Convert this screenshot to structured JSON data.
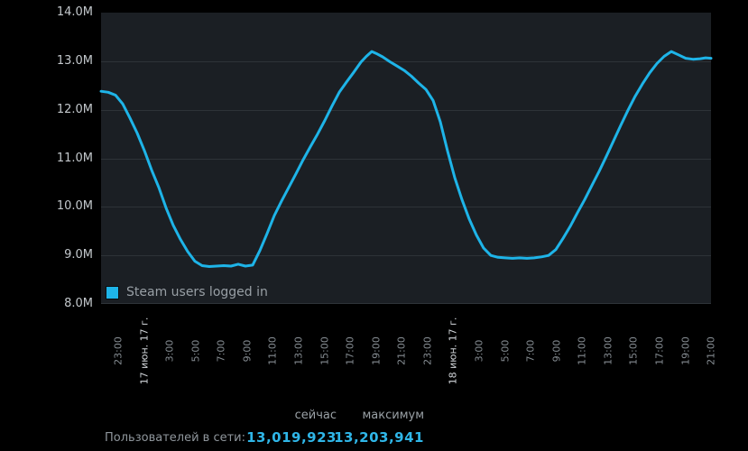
{
  "colors": {
    "background": "#000000",
    "plot_background": "#1b1f24",
    "gridline": "#2e3338",
    "accent_line": "#1eb4e8",
    "value_text": "#2fb6e8",
    "y_label": "#c3c8cc",
    "x_label": "#858c92",
    "x_label_strong": "#d2d6da"
  },
  "chart": {
    "legend": {
      "label": "Steam users logged in",
      "swatch_color": "#1eb4e8"
    },
    "y_ticks": [
      "14.0M",
      "13.0M",
      "12.0M",
      "11.0M",
      "10.0M",
      "9.0M",
      "8.0M"
    ],
    "x_ticks": [
      {
        "label": "23:00",
        "strong": false
      },
      {
        "label": "17 июн. 17 г.",
        "strong": true
      },
      {
        "label": "3:00",
        "strong": false
      },
      {
        "label": "5:00",
        "strong": false
      },
      {
        "label": "7:00",
        "strong": false
      },
      {
        "label": "9:00",
        "strong": false
      },
      {
        "label": "11:00",
        "strong": false
      },
      {
        "label": "13:00",
        "strong": false
      },
      {
        "label": "15:00",
        "strong": false
      },
      {
        "label": "17:00",
        "strong": false
      },
      {
        "label": "19:00",
        "strong": false
      },
      {
        "label": "21:00",
        "strong": false
      },
      {
        "label": "23:00",
        "strong": false
      },
      {
        "label": "18 июн. 17 г.",
        "strong": true
      },
      {
        "label": "3:00",
        "strong": false
      },
      {
        "label": "5:00",
        "strong": false
      },
      {
        "label": "7:00",
        "strong": false
      },
      {
        "label": "9:00",
        "strong": false
      },
      {
        "label": "11:00",
        "strong": false
      },
      {
        "label": "13:00",
        "strong": false
      },
      {
        "label": "15:00",
        "strong": false
      },
      {
        "label": "17:00",
        "strong": false
      },
      {
        "label": "19:00",
        "strong": false
      },
      {
        "label": "21:00",
        "strong": false
      }
    ]
  },
  "chart_data": {
    "type": "line",
    "title": "",
    "xlabel": "",
    "ylabel": "Steam users logged in (millions)",
    "ylim": [
      8,
      14
    ],
    "y_tick_labels": [
      "14.0M",
      "13.0M",
      "12.0M",
      "11.0M",
      "10.0M",
      "9.0M",
      "8.0M"
    ],
    "grid": "horizontal only",
    "legend_position": "bottom-left inside plot",
    "x_unit": "hours from left edge of chart (ticks every 2 h, first tick = 23:00 16 июн.)",
    "t_span": 47.32,
    "first_tick_hour": 1.33,
    "tick_step_hours": 2,
    "x_tick_labels": [
      "23:00",
      "17 июн. 17 г.",
      "3:00",
      "5:00",
      "7:00",
      "9:00",
      "11:00",
      "13:00",
      "15:00",
      "17:00",
      "19:00",
      "21:00",
      "23:00",
      "18 июн. 17 г.",
      "3:00",
      "5:00",
      "7:00",
      "9:00",
      "11:00",
      "13:00",
      "15:00",
      "17:00",
      "19:00",
      "21:00"
    ],
    "series": [
      {
        "name": "Steam users logged in",
        "color": "#1eb4e8",
        "unit": "millions",
        "x_hours": [
          0,
          0.56,
          1.12,
          1.68,
          2.24,
          2.8,
          3.36,
          3.92,
          4.48,
          5.04,
          5.6,
          6.16,
          6.72,
          7.28,
          7.84,
          8.4,
          8.96,
          9.52,
          10.08,
          10.64,
          11.2,
          11.76,
          12.32,
          12.88,
          13.44,
          14.0,
          14.56,
          15.12,
          15.68,
          16.24,
          16.8,
          17.36,
          17.92,
          18.48,
          19.04,
          19.6,
          20.16,
          20.58,
          21.0,
          21.42,
          21.84,
          22.4,
          22.96,
          23.52,
          24.08,
          24.64,
          25.2,
          25.76,
          26.32,
          26.88,
          27.44,
          28.0,
          28.56,
          29.12,
          29.68,
          30.24,
          30.8,
          31.36,
          31.92,
          32.48,
          33.04,
          33.6,
          34.16,
          34.72,
          35.28,
          35.84,
          36.4,
          36.96,
          37.52,
          38.08,
          38.64,
          39.2,
          39.76,
          40.32,
          40.88,
          41.44,
          42.0,
          42.56,
          43.12,
          43.68,
          44.24,
          44.8,
          45.36,
          45.92,
          46.48,
          46.9,
          47.32
        ],
        "values": [
          12.38,
          12.36,
          12.3,
          12.12,
          11.83,
          11.52,
          11.16,
          10.76,
          10.4,
          9.98,
          9.62,
          9.33,
          9.08,
          8.88,
          8.79,
          8.77,
          8.78,
          8.79,
          8.78,
          8.82,
          8.78,
          8.8,
          9.1,
          9.45,
          9.82,
          10.12,
          10.4,
          10.68,
          10.97,
          11.24,
          11.5,
          11.78,
          12.08,
          12.36,
          12.57,
          12.77,
          12.98,
          13.1,
          13.2,
          13.15,
          13.09,
          12.99,
          12.9,
          12.81,
          12.69,
          12.55,
          12.42,
          12.19,
          11.75,
          11.15,
          10.6,
          10.15,
          9.75,
          9.42,
          9.15,
          9.0,
          8.96,
          8.95,
          8.94,
          8.95,
          8.94,
          8.95,
          8.97,
          9.0,
          9.12,
          9.35,
          9.6,
          9.88,
          10.15,
          10.44,
          10.73,
          11.04,
          11.36,
          11.68,
          11.99,
          12.28,
          12.53,
          12.76,
          12.95,
          13.1,
          13.2,
          13.13,
          13.06,
          13.04,
          13.05,
          13.07,
          13.06
        ]
      }
    ],
    "current": 13019923,
    "maximum": 13203941
  },
  "stats": {
    "row_label": "Пользователей в сети:",
    "col_now": "сейчас",
    "col_max": "максимум",
    "now_value": "13,019,923",
    "max_value": "13,203,941"
  }
}
